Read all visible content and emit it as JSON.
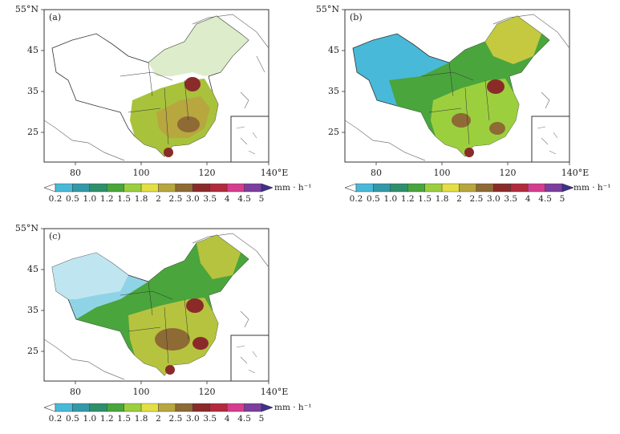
{
  "figure": {
    "panels": [
      {
        "id": "a",
        "label": "(a)"
      },
      {
        "id": "b",
        "label": "(b)"
      },
      {
        "id": "c",
        "label": "(c)"
      }
    ],
    "latitude_ticks": [
      "55°N",
      "45",
      "35",
      "25"
    ],
    "longitude_ticks": [
      "80",
      "100",
      "120",
      "140°E"
    ],
    "colorbar": {
      "labels": [
        "0.2",
        "0.5",
        "1.0",
        "1.2",
        "1.5",
        "1.8",
        "2",
        "2.5",
        "3.0",
        "3.5",
        "4",
        "4.5",
        "5"
      ],
      "colors": [
        "#ffffff",
        "#49b9d9",
        "#3399a8",
        "#2e8f6c",
        "#4aa53c",
        "#9ccf3e",
        "#e4df44",
        "#b8a63f",
        "#8e6a35",
        "#8a2b2a",
        "#b22a3d",
        "#d63d8e",
        "#7b3f9e",
        "#3f2f8e"
      ],
      "unit": "mm · h⁻¹"
    }
  }
}
